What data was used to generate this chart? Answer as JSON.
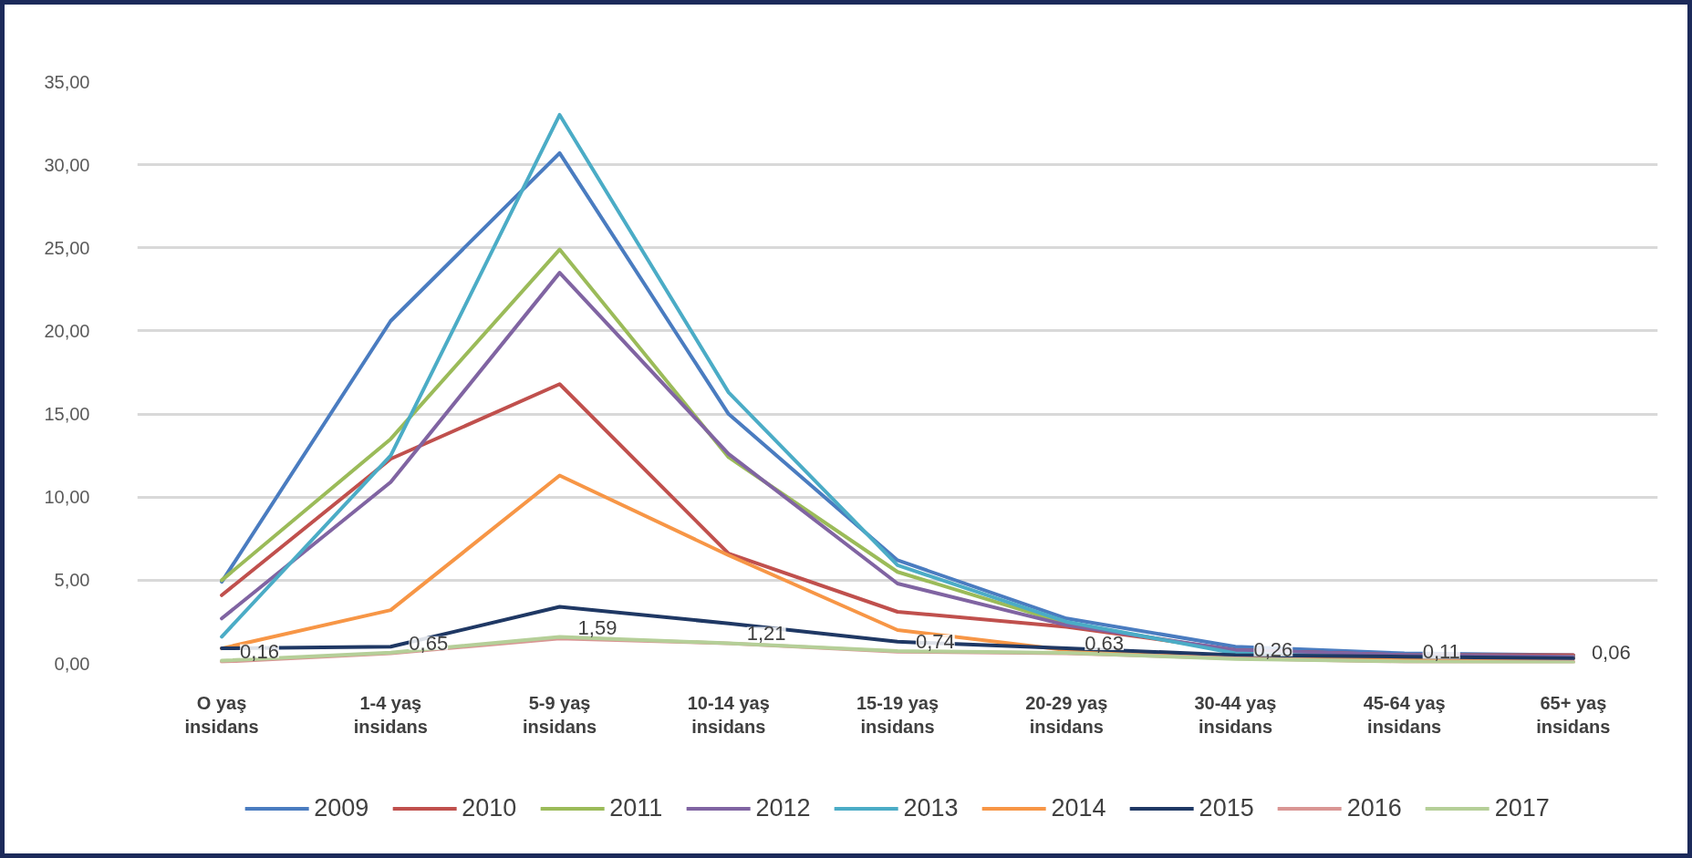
{
  "chart_data": {
    "type": "line",
    "categories": [
      "O yaş\ninsidans",
      "1-4 yaş\ninsidans",
      "5-9 yaş\ninsidans",
      "10-14 yaş\ninsidans",
      "15-19 yaş\ninsidans",
      "20-29 yaş\ninsidans",
      "30-44 yaş\ninsidans",
      "45-64 yaş\ninsidans",
      "65+ yaş\ninsidans"
    ],
    "series": [
      {
        "name": "2009",
        "color": "#4a7cc0",
        "values": [
          4.9,
          20.6,
          30.7,
          15.0,
          6.2,
          2.7,
          1.0,
          0.6,
          0.5
        ]
      },
      {
        "name": "2010",
        "color": "#c0504d",
        "values": [
          4.1,
          12.3,
          16.8,
          6.6,
          3.1,
          2.2,
          0.8,
          0.5,
          0.5
        ]
      },
      {
        "name": "2011",
        "color": "#9bbb59",
        "values": [
          5.0,
          13.5,
          24.9,
          12.4,
          5.5,
          2.4,
          0.7,
          0.4,
          0.4
        ]
      },
      {
        "name": "2012",
        "color": "#8064a2",
        "values": [
          2.7,
          10.9,
          23.5,
          12.6,
          4.8,
          2.3,
          0.8,
          0.5,
          0.4
        ]
      },
      {
        "name": "2013",
        "color": "#4bacc6",
        "values": [
          1.6,
          12.5,
          33.0,
          16.3,
          5.9,
          2.5,
          0.6,
          0.3,
          0.3
        ]
      },
      {
        "name": "2014",
        "color": "#f79646",
        "values": [
          0.9,
          3.2,
          11.3,
          6.5,
          2.0,
          0.8,
          0.3,
          0.3,
          0.3
        ]
      },
      {
        "name": "2015",
        "color": "#1f3864",
        "values": [
          0.9,
          1.0,
          3.4,
          2.4,
          1.3,
          0.9,
          0.5,
          0.4,
          0.3
        ]
      },
      {
        "name": "2016",
        "color": "#d99694",
        "values": [
          0.1,
          0.6,
          1.5,
          1.2,
          0.7,
          0.6,
          0.3,
          0.1,
          0.1
        ]
      },
      {
        "name": "2017",
        "color": "#b5cf98",
        "values": [
          0.16,
          0.65,
          1.59,
          1.21,
          0.74,
          0.63,
          0.26,
          0.11,
          0.06
        ],
        "value_labels": [
          "0,16",
          "0,65",
          "1,59",
          "1,21",
          "0,74",
          "0,63",
          "0,26",
          "0,11",
          "0,06"
        ]
      }
    ],
    "ylim": [
      0,
      35
    ],
    "yticks": [
      {
        "value": 0,
        "label": "0,00"
      },
      {
        "value": 5,
        "label": "5,00"
      },
      {
        "value": 10,
        "label": "10,00"
      },
      {
        "value": 15,
        "label": "15,00"
      },
      {
        "value": 20,
        "label": "20,00"
      },
      {
        "value": 25,
        "label": "25,00"
      },
      {
        "value": 30,
        "label": "30,00"
      },
      {
        "value": 35,
        "label": "35,00"
      }
    ],
    "grid": "y",
    "legend": "bottom",
    "line_style": "solid"
  }
}
